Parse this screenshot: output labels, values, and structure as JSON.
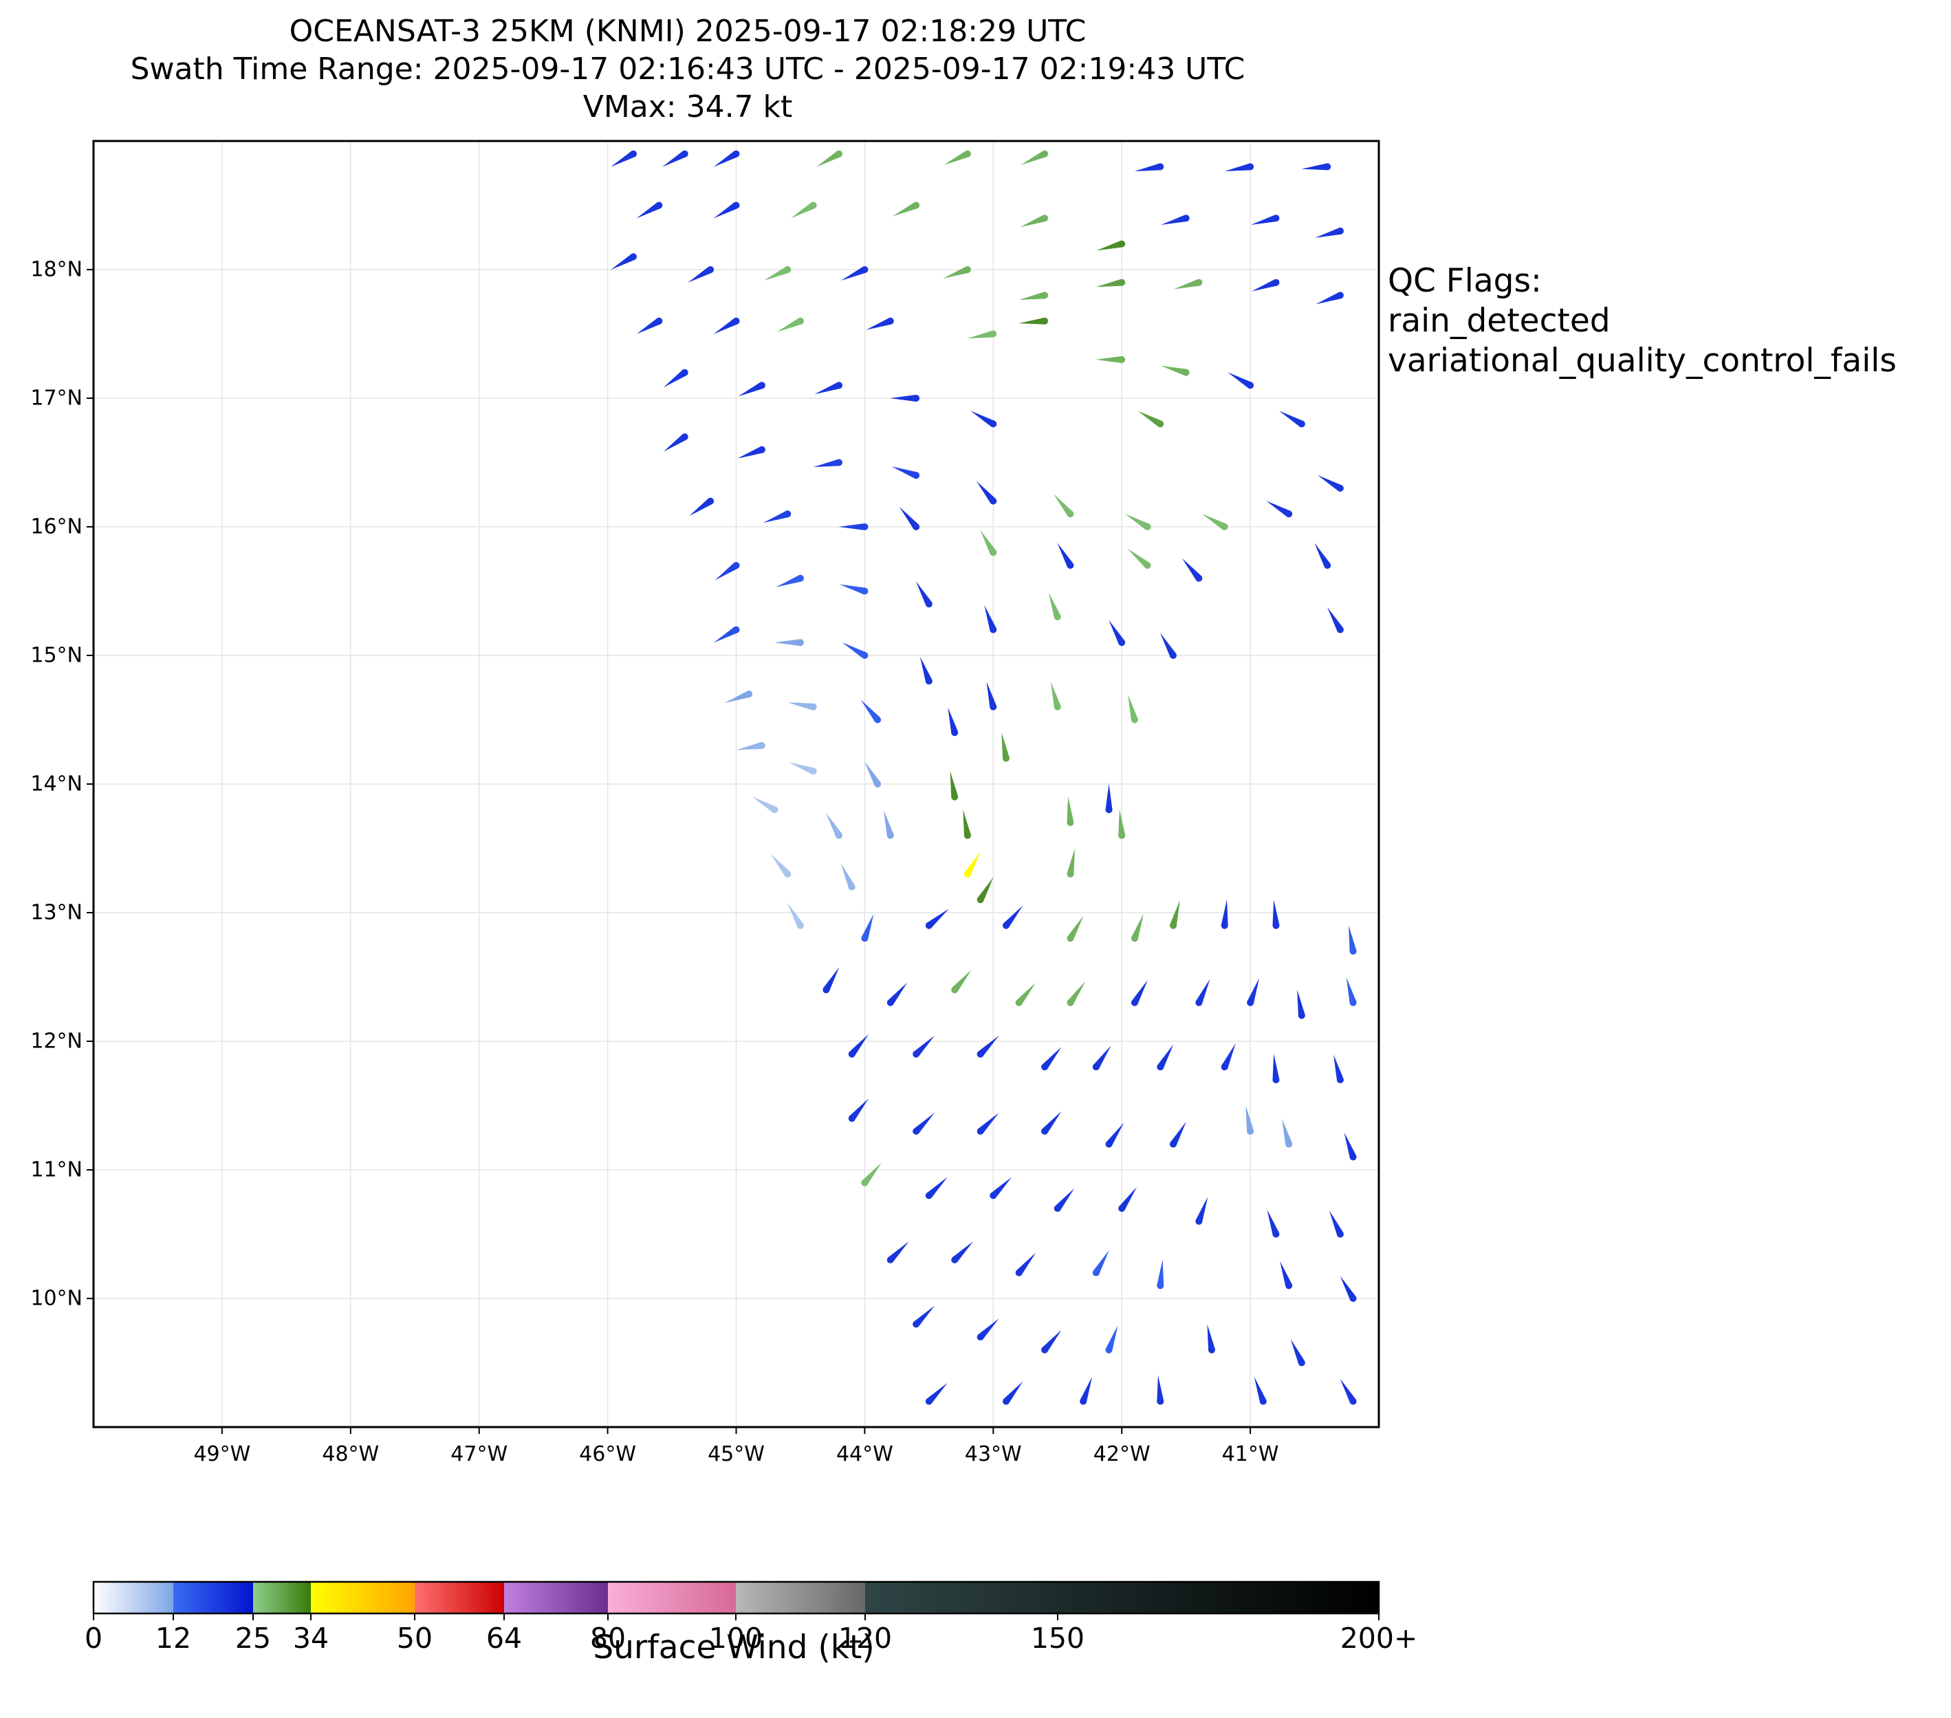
{
  "title": {
    "line1": "OCEANSAT-3 25KM (KNMI) 2025-09-17 02:18:29 UTC",
    "line2": "Swath Time Range: 2025-09-17 02:16:43 UTC - 2025-09-17 02:19:43 UTC",
    "line3": "VMax: 34.7 kt"
  },
  "qc_flags": {
    "heading": "QC Flags:",
    "flags": [
      "rain_detected",
      "variational_quality_control_fails"
    ]
  },
  "map": {
    "lon_range": [
      -50,
      -40
    ],
    "lat_range": [
      9,
      19
    ],
    "lat_ticks": [
      {
        "value": 10,
        "label": "10°N"
      },
      {
        "value": 11,
        "label": "11°N"
      },
      {
        "value": 12,
        "label": "12°N"
      },
      {
        "value": 13,
        "label": "13°N"
      },
      {
        "value": 14,
        "label": "14°N"
      },
      {
        "value": 15,
        "label": "15°N"
      },
      {
        "value": 16,
        "label": "16°N"
      },
      {
        "value": 17,
        "label": "17°N"
      },
      {
        "value": 18,
        "label": "18°N"
      }
    ],
    "lon_ticks": [
      {
        "value": -49,
        "label": "49°W"
      },
      {
        "value": -48,
        "label": "48°W"
      },
      {
        "value": -47,
        "label": "47°W"
      },
      {
        "value": -46,
        "label": "46°W"
      },
      {
        "value": -45,
        "label": "45°W"
      },
      {
        "value": -44,
        "label": "44°W"
      },
      {
        "value": -43,
        "label": "43°W"
      },
      {
        "value": -42,
        "label": "42°W"
      },
      {
        "value": -41,
        "label": "41°W"
      }
    ],
    "grid": true,
    "swath_edge_left": [
      [
        -46.2,
        19.0
      ],
      [
        -44.0,
        11.0
      ],
      [
        -43.5,
        9.0
      ]
    ]
  },
  "colorbar": {
    "title": "Surface Wind (kt)",
    "ticks": [
      {
        "value": 0,
        "label": "0"
      },
      {
        "value": 12,
        "label": "12"
      },
      {
        "value": 25,
        "label": "25"
      },
      {
        "value": 34,
        "label": "34"
      },
      {
        "value": 50,
        "label": "50"
      },
      {
        "value": 64,
        "label": "64"
      },
      {
        "value": 80,
        "label": "80"
      },
      {
        "value": 100,
        "label": "100"
      },
      {
        "value": 120,
        "label": "120"
      },
      {
        "value": 150,
        "label": "150"
      },
      {
        "value": 200,
        "label": "200+"
      }
    ],
    "segments": [
      {
        "from": 0,
        "to": 12,
        "colors": [
          "#ffffff",
          "#7fa6e6"
        ]
      },
      {
        "from": 12,
        "to": 25,
        "colors": [
          "#3a6cf2",
          "#0414d0"
        ]
      },
      {
        "from": 25,
        "to": 34,
        "colors": [
          "#8cd08c",
          "#3a7a0a"
        ]
      },
      {
        "from": 34,
        "to": 50,
        "colors": [
          "#ffff00",
          "#ffa500"
        ]
      },
      {
        "from": 50,
        "to": 64,
        "colors": [
          "#ff7070",
          "#cc0000"
        ]
      },
      {
        "from": 64,
        "to": 80,
        "colors": [
          "#c080e0",
          "#6a2f90"
        ]
      },
      {
        "from": 80,
        "to": 100,
        "colors": [
          "#f8b0d8",
          "#d86898"
        ]
      },
      {
        "from": 100,
        "to": 120,
        "colors": [
          "#b8b8b8",
          "#686868"
        ]
      },
      {
        "from": 120,
        "to": 200,
        "colors": [
          "#2f4545",
          "#000000"
        ]
      }
    ]
  },
  "chart_data": {
    "type": "scatter",
    "title": "OCEANSAT-3 25KM (KNMI) 2025-09-17 02:18:29 UTC",
    "xlabel": "",
    "ylabel": "",
    "xlim": [
      -50,
      -40
    ],
    "ylim": [
      9,
      19
    ],
    "vmax_kt": 34.7,
    "note_fields": [
      "lon",
      "lat",
      "speed_kt",
      "dir_deg"
    ],
    "series": [
      {
        "values": [
          [
            -45.8,
            18.9,
            20,
            240
          ],
          [
            -45.4,
            18.9,
            20,
            240
          ],
          [
            -45.0,
            18.9,
            20,
            240
          ],
          [
            -44.2,
            18.9,
            28,
            240
          ],
          [
            -43.2,
            18.9,
            28,
            245
          ],
          [
            -42.6,
            18.9,
            28,
            245
          ],
          [
            -41.7,
            18.8,
            20,
            260
          ],
          [
            -41.0,
            18.8,
            20,
            260
          ],
          [
            -40.4,
            18.8,
            20,
            265
          ],
          [
            -45.6,
            18.5,
            20,
            240
          ],
          [
            -45.0,
            18.5,
            20,
            240
          ],
          [
            -44.4,
            18.5,
            27,
            240
          ],
          [
            -43.6,
            18.5,
            28,
            245
          ],
          [
            -42.6,
            18.4,
            28,
            250
          ],
          [
            -42.0,
            18.2,
            32,
            255
          ],
          [
            -41.5,
            18.4,
            20,
            255
          ],
          [
            -40.8,
            18.4,
            20,
            255
          ],
          [
            -40.3,
            18.3,
            20,
            255
          ],
          [
            -45.8,
            18.1,
            20,
            240
          ],
          [
            -45.2,
            18.0,
            20,
            240
          ],
          [
            -44.6,
            18.0,
            27,
            245
          ],
          [
            -44.0,
            18.0,
            20,
            245
          ],
          [
            -43.2,
            18.0,
            28,
            250
          ],
          [
            -42.6,
            17.8,
            28,
            260
          ],
          [
            -42.0,
            17.9,
            30,
            260
          ],
          [
            -41.4,
            17.9,
            28,
            255
          ],
          [
            -40.8,
            17.9,
            20,
            250
          ],
          [
            -40.3,
            17.8,
            20,
            250
          ],
          [
            -45.6,
            17.6,
            20,
            240
          ],
          [
            -45.0,
            17.6,
            20,
            240
          ],
          [
            -44.5,
            17.6,
            27,
            245
          ],
          [
            -43.8,
            17.6,
            20,
            250
          ],
          [
            -43.0,
            17.5,
            27,
            260
          ],
          [
            -42.6,
            17.6,
            32,
            265
          ],
          [
            -42.0,
            17.3,
            28,
            270
          ],
          [
            -41.5,
            17.2,
            28,
            285
          ],
          [
            -41.0,
            17.1,
            20,
            300
          ],
          [
            -45.4,
            17.2,
            20,
            235
          ],
          [
            -44.8,
            17.1,
            20,
            245
          ],
          [
            -44.2,
            17.1,
            20,
            250
          ],
          [
            -43.6,
            17.0,
            20,
            270
          ],
          [
            -43.0,
            16.8,
            20,
            300
          ],
          [
            -41.7,
            16.8,
            30,
            300
          ],
          [
            -40.6,
            16.8,
            20,
            300
          ],
          [
            -45.4,
            16.7,
            20,
            235
          ],
          [
            -44.8,
            16.6,
            20,
            250
          ],
          [
            -44.2,
            16.5,
            18,
            260
          ],
          [
            -43.6,
            16.4,
            18,
            290
          ],
          [
            -43.0,
            16.2,
            20,
            320
          ],
          [
            -42.4,
            16.1,
            27,
            320
          ],
          [
            -41.8,
            16.0,
            27,
            300
          ],
          [
            -41.2,
            16.0,
            27,
            300
          ],
          [
            -40.7,
            16.1,
            20,
            300
          ],
          [
            -40.3,
            16.3,
            20,
            300
          ],
          [
            -45.2,
            16.2,
            20,
            235
          ],
          [
            -44.6,
            16.1,
            18,
            250
          ],
          [
            -44.0,
            16.0,
            18,
            270
          ],
          [
            -43.6,
            16.0,
            20,
            320
          ],
          [
            -43.0,
            15.8,
            27,
            330
          ],
          [
            -42.4,
            15.7,
            20,
            330
          ],
          [
            -41.8,
            15.7,
            27,
            310
          ],
          [
            -41.4,
            15.6,
            20,
            320
          ],
          [
            -40.4,
            15.7,
            20,
            330
          ],
          [
            -45.0,
            15.7,
            18,
            235
          ],
          [
            -44.5,
            15.6,
            14,
            250
          ],
          [
            -44.0,
            15.5,
            14,
            285
          ],
          [
            -43.5,
            15.4,
            20,
            330
          ],
          [
            -43.0,
            15.2,
            20,
            340
          ],
          [
            -42.5,
            15.3,
            27,
            340
          ],
          [
            -42.0,
            15.1,
            20,
            330
          ],
          [
            -41.6,
            15.0,
            20,
            330
          ],
          [
            -40.3,
            15.2,
            20,
            330
          ],
          [
            -45.0,
            15.2,
            16,
            240
          ],
          [
            -44.5,
            15.1,
            12,
            270
          ],
          [
            -44.0,
            15.0,
            14,
            300
          ],
          [
            -43.5,
            14.8,
            20,
            340
          ],
          [
            -43.0,
            14.6,
            20,
            345
          ],
          [
            -42.5,
            14.6,
            27,
            345
          ],
          [
            -41.9,
            14.5,
            27,
            345
          ],
          [
            -44.9,
            14.7,
            12,
            250
          ],
          [
            -44.4,
            14.6,
            10,
            280
          ],
          [
            -43.9,
            14.5,
            14,
            320
          ],
          [
            -43.3,
            14.4,
            20,
            345
          ],
          [
            -42.9,
            14.2,
            30,
            350
          ],
          [
            -44.8,
            14.3,
            10,
            260
          ],
          [
            -44.4,
            14.1,
            8,
            290
          ],
          [
            -43.9,
            14.0,
            12,
            330
          ],
          [
            -43.3,
            13.9,
            32,
            350
          ],
          [
            -43.2,
            13.6,
            32,
            350
          ],
          [
            -42.4,
            13.7,
            28,
            355
          ],
          [
            -42.0,
            13.6,
            28,
            355
          ],
          [
            -42.1,
            13.8,
            20,
            0
          ],
          [
            -44.7,
            13.8,
            8,
            300
          ],
          [
            -44.2,
            13.6,
            10,
            330
          ],
          [
            -43.8,
            13.6,
            12,
            345
          ],
          [
            -43.2,
            13.3,
            34.7,
            30
          ],
          [
            -43.1,
            13.1,
            32,
            30
          ],
          [
            -44.6,
            13.3,
            8,
            320
          ],
          [
            -44.1,
            13.2,
            10,
            335
          ],
          [
            -42.4,
            13.3,
            28,
            10
          ],
          [
            -44.5,
            12.9,
            8,
            330
          ],
          [
            -44.0,
            12.8,
            14,
            20
          ],
          [
            -43.5,
            12.9,
            20,
            50
          ],
          [
            -42.9,
            12.9,
            20,
            40
          ],
          [
            -42.4,
            12.8,
            28,
            30
          ],
          [
            -41.9,
            12.8,
            28,
            20
          ],
          [
            -41.6,
            12.9,
            30,
            15
          ],
          [
            -41.2,
            12.9,
            20,
            5
          ],
          [
            -40.8,
            12.9,
            20,
            355
          ],
          [
            -40.2,
            12.7,
            14,
            350
          ],
          [
            -44.3,
            12.4,
            20,
            30
          ],
          [
            -43.8,
            12.3,
            20,
            40
          ],
          [
            -43.3,
            12.4,
            28,
            40
          ],
          [
            -42.8,
            12.3,
            28,
            40
          ],
          [
            -42.4,
            12.3,
            28,
            35
          ],
          [
            -41.9,
            12.3,
            20,
            30
          ],
          [
            -41.4,
            12.3,
            20,
            25
          ],
          [
            -41.0,
            12.3,
            20,
            20
          ],
          [
            -40.6,
            12.2,
            20,
            350
          ],
          [
            -40.2,
            12.3,
            14,
            345
          ],
          [
            -44.1,
            11.9,
            20,
            40
          ],
          [
            -43.6,
            11.9,
            20,
            45
          ],
          [
            -43.1,
            11.9,
            20,
            45
          ],
          [
            -42.6,
            11.8,
            20,
            40
          ],
          [
            -42.2,
            11.8,
            20,
            35
          ],
          [
            -41.7,
            11.8,
            20,
            30
          ],
          [
            -41.2,
            11.8,
            20,
            25
          ],
          [
            -40.8,
            11.7,
            20,
            355
          ],
          [
            -40.3,
            11.7,
            20,
            345
          ],
          [
            -44.1,
            11.4,
            20,
            40
          ],
          [
            -43.6,
            11.3,
            20,
            45
          ],
          [
            -43.1,
            11.3,
            20,
            45
          ],
          [
            -42.6,
            11.3,
            20,
            40
          ],
          [
            -42.1,
            11.2,
            20,
            35
          ],
          [
            -41.6,
            11.2,
            20,
            30
          ],
          [
            -41.0,
            11.3,
            12,
            350
          ],
          [
            -40.7,
            11.2,
            12,
            345
          ],
          [
            -40.2,
            11.1,
            20,
            340
          ],
          [
            -44.0,
            10.9,
            27,
            40
          ],
          [
            -43.5,
            10.8,
            20,
            45
          ],
          [
            -43.0,
            10.8,
            20,
            45
          ],
          [
            -42.5,
            10.7,
            20,
            40
          ],
          [
            -42.0,
            10.7,
            20,
            35
          ],
          [
            -41.4,
            10.6,
            20,
            20
          ],
          [
            -40.8,
            10.5,
            20,
            340
          ],
          [
            -40.3,
            10.5,
            20,
            335
          ],
          [
            -43.8,
            10.3,
            20,
            45
          ],
          [
            -43.3,
            10.3,
            20,
            45
          ],
          [
            -42.8,
            10.2,
            20,
            40
          ],
          [
            -42.2,
            10.2,
            14,
            30
          ],
          [
            -41.7,
            10.1,
            14,
            5
          ],
          [
            -40.7,
            10.1,
            20,
            340
          ],
          [
            -40.2,
            10.0,
            20,
            330
          ],
          [
            -43.6,
            9.8,
            20,
            45
          ],
          [
            -43.1,
            9.7,
            20,
            45
          ],
          [
            -42.6,
            9.6,
            20,
            40
          ],
          [
            -42.1,
            9.6,
            14,
            20
          ],
          [
            -41.3,
            9.6,
            20,
            350
          ],
          [
            -40.6,
            9.5,
            20,
            335
          ],
          [
            -43.5,
            9.2,
            20,
            45
          ],
          [
            -42.9,
            9.2,
            20,
            40
          ],
          [
            -42.3,
            9.2,
            20,
            20
          ],
          [
            -41.7,
            9.2,
            20,
            355
          ],
          [
            -40.9,
            9.2,
            20,
            340
          ],
          [
            -40.2,
            9.2,
            20,
            330
          ]
        ]
      }
    ]
  }
}
